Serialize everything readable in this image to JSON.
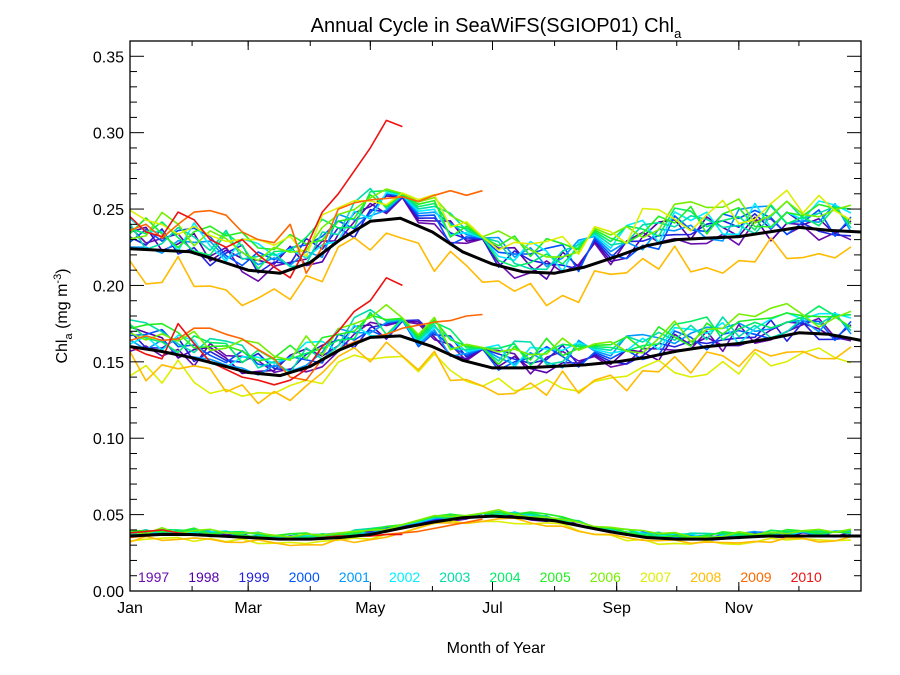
{
  "chart_data": {
    "type": "line",
    "title": "Annual Cycle in SeaWiFS(SGIOP01) Chl",
    "title_subscript": "a",
    "xlabel": "Month of Year",
    "ylabel": "Chl",
    "ylabel_subscript": "a",
    "ylabel_units_prefix": " (mg m",
    "ylabel_units_superscript": "-3",
    "ylabel_units_suffix": ")",
    "xlim": [
      0,
      365
    ],
    "ylim": [
      0.0,
      0.36
    ],
    "x_ticks": [
      {
        "value": 0,
        "label": "Jan"
      },
      {
        "value": 59,
        "label": "Mar"
      },
      {
        "value": 120,
        "label": "May"
      },
      {
        "value": 181,
        "label": "Jul"
      },
      {
        "value": 243,
        "label": "Sep"
      },
      {
        "value": 304,
        "label": "Nov"
      }
    ],
    "y_ticks": [
      {
        "value": 0.0,
        "label": "0.00"
      },
      {
        "value": 0.05,
        "label": "0.05"
      },
      {
        "value": 0.1,
        "label": "0.10"
      },
      {
        "value": 0.15,
        "label": "0.15"
      },
      {
        "value": 0.2,
        "label": "0.20"
      },
      {
        "value": 0.25,
        "label": "0.25"
      },
      {
        "value": 0.3,
        "label": "0.30"
      },
      {
        "value": 0.35,
        "label": "0.35"
      }
    ],
    "grid": false,
    "legend_position": "bottom inside plot",
    "series": [
      {
        "name": "1997",
        "color": "#6a0dad"
      },
      {
        "name": "1998",
        "color": "#5500aa"
      },
      {
        "name": "1999",
        "color": "#2222dd"
      },
      {
        "name": "2000",
        "color": "#0055ff"
      },
      {
        "name": "2001",
        "color": "#0099ff"
      },
      {
        "name": "2002",
        "color": "#00eeff"
      },
      {
        "name": "2003",
        "color": "#00ddaa"
      },
      {
        "name": "2004",
        "color": "#00ee66"
      },
      {
        "name": "2005",
        "color": "#22ee22"
      },
      {
        "name": "2006",
        "color": "#77ee00"
      },
      {
        "name": "2007",
        "color": "#ddee00"
      },
      {
        "name": "2008",
        "color": "#ffbb00"
      },
      {
        "name": "2009",
        "color": "#ff6600"
      },
      {
        "name": "2010",
        "color": "#ee1111"
      }
    ],
    "climatology_color": "#000000",
    "climatology": {
      "x": [
        0,
        15,
        30,
        45,
        59,
        75,
        90,
        105,
        120,
        135,
        151,
        166,
        181,
        196,
        212,
        227,
        243,
        258,
        273,
        288,
        304,
        319,
        334,
        349,
        365
      ],
      "upper": [
        0.224,
        0.223,
        0.222,
        0.216,
        0.21,
        0.208,
        0.215,
        0.23,
        0.242,
        0.244,
        0.235,
        0.222,
        0.214,
        0.209,
        0.208,
        0.212,
        0.219,
        0.226,
        0.23,
        0.231,
        0.232,
        0.235,
        0.238,
        0.236,
        0.235
      ],
      "middle": [
        0.16,
        0.157,
        0.153,
        0.148,
        0.143,
        0.141,
        0.147,
        0.158,
        0.166,
        0.167,
        0.16,
        0.151,
        0.146,
        0.146,
        0.147,
        0.148,
        0.15,
        0.153,
        0.157,
        0.16,
        0.162,
        0.165,
        0.169,
        0.168,
        0.164
      ],
      "lower": [
        0.036,
        0.037,
        0.037,
        0.036,
        0.035,
        0.034,
        0.034,
        0.035,
        0.037,
        0.041,
        0.045,
        0.048,
        0.049,
        0.048,
        0.046,
        0.042,
        0.038,
        0.035,
        0.034,
        0.034,
        0.035,
        0.036,
        0.036,
        0.036,
        0.036
      ]
    },
    "partial_years": {
      "2010": {
        "x": [
          0,
          8,
          16,
          24,
          32,
          40,
          48,
          56,
          64,
          72,
          80,
          88,
          96,
          104,
          112,
          120,
          128,
          136
        ],
        "upper": [
          0.245,
          0.235,
          0.232,
          0.248,
          0.243,
          0.23,
          0.225,
          0.23,
          0.22,
          0.212,
          0.205,
          0.225,
          0.248,
          0.26,
          0.275,
          0.29,
          0.308,
          0.304
        ],
        "middle": [
          0.16,
          0.155,
          0.152,
          0.175,
          0.162,
          0.15,
          0.145,
          0.14,
          0.138,
          0.135,
          0.138,
          0.145,
          0.16,
          0.17,
          0.183,
          0.19,
          0.205,
          0.2
        ],
        "lower": [
          0.038,
          0.039,
          0.04,
          0.038,
          0.037,
          0.036,
          0.036,
          0.035,
          0.035,
          0.034,
          0.034,
          0.034,
          0.035,
          0.036,
          0.036,
          0.036,
          0.037,
          0.037
        ]
      },
      "2009": {
        "x": [
          0,
          8,
          16,
          24,
          32,
          40,
          48,
          56,
          64,
          72,
          80,
          88,
          96,
          104,
          112,
          120,
          128,
          136,
          144,
          152,
          160,
          168,
          176
        ],
        "upper": [
          0.236,
          0.24,
          0.231,
          0.24,
          0.248,
          0.249,
          0.246,
          0.235,
          0.23,
          0.228,
          0.24,
          0.208,
          0.225,
          0.25,
          0.254,
          0.256,
          0.257,
          0.258,
          0.255,
          0.259,
          0.262,
          0.259,
          0.262
        ],
        "middle": [
          0.164,
          0.167,
          0.164,
          0.165,
          0.172,
          0.172,
          0.168,
          0.165,
          0.158,
          0.152,
          0.14,
          0.138,
          0.152,
          0.158,
          0.163,
          0.166,
          0.168,
          0.172,
          0.174,
          0.176,
          0.177,
          0.18,
          0.181
        ],
        "lower": [
          0.035,
          0.036,
          0.037,
          0.037,
          0.037,
          0.037,
          0.036,
          0.035,
          0.035,
          0.034,
          0.034,
          0.034,
          0.035,
          0.035,
          0.036,
          0.036,
          0.037,
          0.038,
          0.039,
          0.041,
          0.043,
          0.045,
          0.047
        ]
      }
    }
  }
}
